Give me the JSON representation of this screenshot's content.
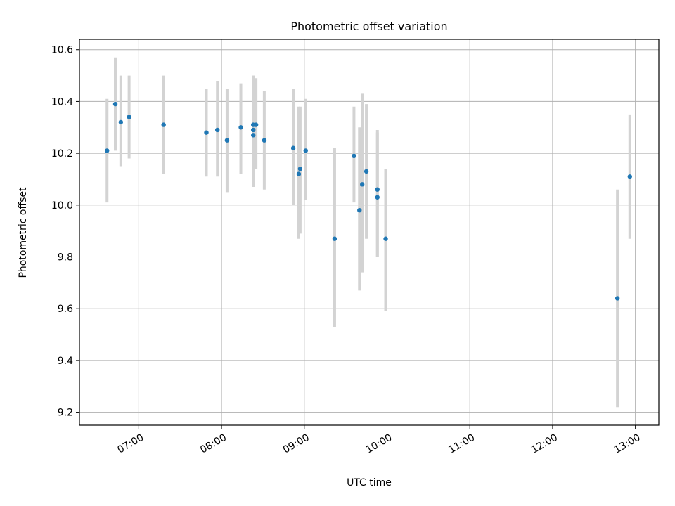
{
  "chart_data": {
    "type": "scatter",
    "title": "Photometric offset variation",
    "xlabel": "UTC time",
    "ylabel": "Photometric offset",
    "x_unit": "UTC time (HH:MM)",
    "xlim": [
      "06:17",
      "13:17"
    ],
    "ylim": [
      9.15,
      10.64
    ],
    "x_ticks": [
      "07:00",
      "08:00",
      "09:00",
      "10:00",
      "11:00",
      "12:00",
      "13:00"
    ],
    "y_ticks": [
      9.2,
      9.4,
      9.6,
      9.8,
      10.0,
      10.2,
      10.4,
      10.6
    ],
    "y_tick_labels": [
      "9.2",
      "9.4",
      "9.6",
      "9.8",
      "10.0",
      "10.2",
      "10.4",
      "10.6"
    ],
    "grid": true,
    "colors": {
      "points": "#1f77b4",
      "errorbars": "#d3d3d3",
      "grid": "#b0b0b0"
    },
    "points": [
      {
        "x": "06:37",
        "y": 10.21,
        "ylo": 10.01,
        "yhi": 10.41
      },
      {
        "x": "06:43",
        "y": 10.39,
        "ylo": 10.21,
        "yhi": 10.57
      },
      {
        "x": "06:47",
        "y": 10.32,
        "ylo": 10.15,
        "yhi": 10.5
      },
      {
        "x": "06:53",
        "y": 10.34,
        "ylo": 10.18,
        "yhi": 10.5
      },
      {
        "x": "07:18",
        "y": 10.31,
        "ylo": 10.12,
        "yhi": 10.5
      },
      {
        "x": "07:49",
        "y": 10.28,
        "ylo": 10.11,
        "yhi": 10.45
      },
      {
        "x": "07:57",
        "y": 10.29,
        "ylo": 10.11,
        "yhi": 10.48
      },
      {
        "x": "08:04",
        "y": 10.25,
        "ylo": 10.05,
        "yhi": 10.45
      },
      {
        "x": "08:14",
        "y": 10.3,
        "ylo": 10.12,
        "yhi": 10.47
      },
      {
        "x": "08:23",
        "y": 10.31,
        "ylo": 10.09,
        "yhi": 10.5
      },
      {
        "x": "08:23",
        "y": 10.29,
        "ylo": 10.08,
        "yhi": 10.5
      },
      {
        "x": "08:23",
        "y": 10.27,
        "ylo": 10.07,
        "yhi": 10.48
      },
      {
        "x": "08:25",
        "y": 10.31,
        "ylo": 10.14,
        "yhi": 10.49
      },
      {
        "x": "08:31",
        "y": 10.25,
        "ylo": 10.06,
        "yhi": 10.44
      },
      {
        "x": "08:52",
        "y": 10.22,
        "ylo": 10.0,
        "yhi": 10.45
      },
      {
        "x": "08:56",
        "y": 10.12,
        "ylo": 9.87,
        "yhi": 10.38
      },
      {
        "x": "08:57",
        "y": 10.14,
        "ylo": 9.89,
        "yhi": 10.38
      },
      {
        "x": "09:01",
        "y": 10.21,
        "ylo": 10.02,
        "yhi": 10.41
      },
      {
        "x": "09:22",
        "y": 9.87,
        "ylo": 9.53,
        "yhi": 10.22
      },
      {
        "x": "09:36",
        "y": 10.19,
        "ylo": 10.01,
        "yhi": 10.38
      },
      {
        "x": "09:40",
        "y": 9.98,
        "ylo": 9.67,
        "yhi": 10.3
      },
      {
        "x": "09:42",
        "y": 10.08,
        "ylo": 9.74,
        "yhi": 10.43
      },
      {
        "x": "09:45",
        "y": 10.13,
        "ylo": 9.87,
        "yhi": 10.39
      },
      {
        "x": "09:53",
        "y": 10.06,
        "ylo": 9.8,
        "yhi": 10.29
      },
      {
        "x": "09:53",
        "y": 10.03,
        "ylo": 9.8,
        "yhi": 10.28
      },
      {
        "x": "09:59",
        "y": 9.87,
        "ylo": 9.59,
        "yhi": 10.14
      },
      {
        "x": "12:47",
        "y": 9.64,
        "ylo": 9.22,
        "yhi": 10.06
      },
      {
        "x": "12:56",
        "y": 10.11,
        "ylo": 9.87,
        "yhi": 10.35
      }
    ]
  }
}
